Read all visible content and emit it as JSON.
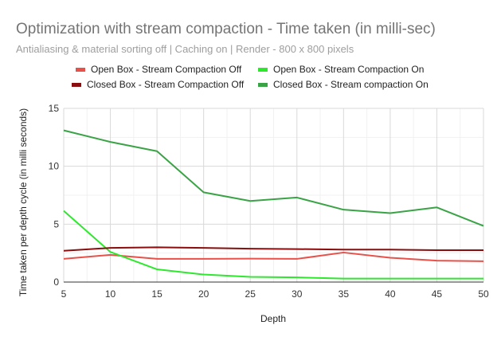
{
  "chart_data": {
    "type": "line",
    "title": "Optimization with stream compaction - Time taken (in milli-sec)",
    "subtitle": "Antialiasing & material sorting off | Caching on | Render - 800 x 800 pixels",
    "xlabel": "Depth",
    "ylabel": "Time taken per depth cycle (in milli seconds)",
    "x": [
      5,
      10,
      15,
      20,
      25,
      30,
      35,
      40,
      45,
      50
    ],
    "xlim": [
      5,
      50
    ],
    "ylim": [
      0,
      15
    ],
    "x_ticks": [
      5,
      10,
      15,
      20,
      25,
      30,
      35,
      40,
      45,
      50
    ],
    "y_ticks": [
      0,
      5,
      10,
      15
    ],
    "grid": true,
    "legend_position": "top",
    "series": [
      {
        "name": "Open Box - Stream Compaction Off",
        "color": "#e8514a",
        "values": [
          2.0,
          2.35,
          2.0,
          2.0,
          2.02,
          2.0,
          2.55,
          2.1,
          1.85,
          1.8
        ]
      },
      {
        "name": "Open Box - Stream Compaction On",
        "color": "#2ee82e",
        "values": [
          6.15,
          2.6,
          1.1,
          0.65,
          0.45,
          0.4,
          0.3,
          0.3,
          0.3,
          0.3
        ]
      },
      {
        "name": "Closed Box - Stream Compaction Off",
        "color": "#8b0d0d",
        "values": [
          2.7,
          2.95,
          3.0,
          2.95,
          2.88,
          2.85,
          2.8,
          2.8,
          2.75,
          2.75
        ]
      },
      {
        "name": "Closed Box - Stream compaction On",
        "color": "#3aa346",
        "values": [
          13.1,
          12.1,
          11.3,
          7.75,
          7.0,
          7.3,
          6.25,
          5.95,
          6.45,
          4.85
        ]
      }
    ]
  }
}
